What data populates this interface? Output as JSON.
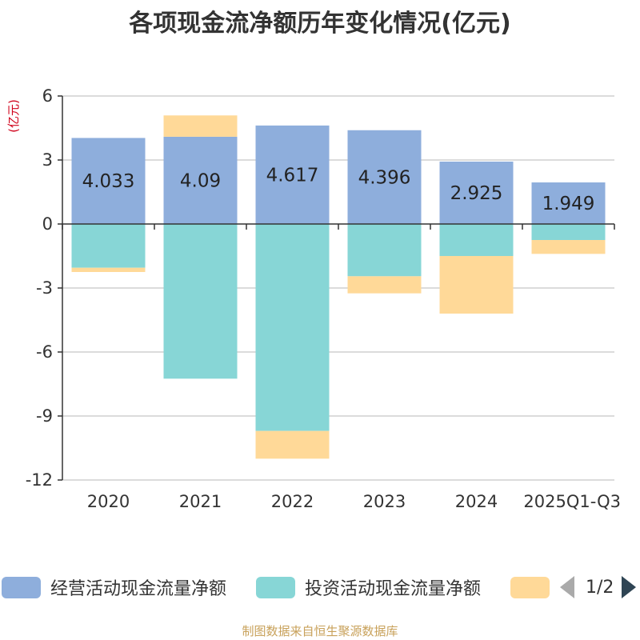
{
  "chart_data": {
    "type": "bar",
    "stacked": true,
    "title": "各项现金流净额历年变化情况(亿元)",
    "ylabel": "(亿元)",
    "xlabel": "",
    "categories": [
      "2020",
      "2021",
      "2022",
      "2023",
      "2024",
      "2025Q1-Q3"
    ],
    "ylim": [
      -12,
      6
    ],
    "yticks": [
      6,
      3,
      0,
      -3,
      -6,
      -9,
      -12
    ],
    "grid": true,
    "series": [
      {
        "name": "经营活动现金流量净额",
        "color": "#8eaedc",
        "values": [
          4.033,
          4.09,
          4.617,
          4.396,
          2.925,
          1.949
        ],
        "labels": [
          "4.033",
          "4.09",
          "4.617",
          "4.396",
          "2.925",
          "1.949"
        ]
      },
      {
        "name": "投资活动现金流量净额",
        "color": "#87d6d6",
        "values": [
          -2.05,
          -7.25,
          -9.7,
          -2.45,
          -1.5,
          -0.75
        ]
      },
      {
        "name": "",
        "color": "#ffd998",
        "values": [
          -0.2,
          1.0,
          -1.3,
          -0.8,
          -2.7,
          -0.65
        ]
      }
    ],
    "legend_position": "bottom"
  },
  "legend": {
    "items": [
      {
        "label": "经营活动现金流量净额",
        "color": "#8eaedc"
      },
      {
        "label": "投资活动现金流量净额",
        "color": "#87d6d6"
      },
      {
        "label": "",
        "color": "#ffd998"
      }
    ],
    "pager_text": "1/2"
  },
  "source": "制图数据来自恒生聚源数据库"
}
